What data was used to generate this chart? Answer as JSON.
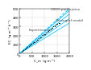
{
  "title": "",
  "xlabel": "C_in  (g m⁻³)",
  "ylabel": "EC  (g m⁻³ h⁻¹)",
  "xlim": [
    0,
    2000
  ],
  "ylim": [
    0,
    500
  ],
  "xticks": [
    0,
    500,
    1000,
    1500,
    2000
  ],
  "yticks": [
    0,
    100,
    200,
    300,
    400,
    500
  ],
  "background_color": "#ffffff",
  "grid_color": "#cccccc",
  "line_color": "#00bfff",
  "dot_color": "#222222",
  "purification_slope": 0.25,
  "model_slopes": [
    0.24,
    0.22,
    0.195,
    0.17
  ],
  "experimental_slope": 0.218,
  "label_fontsize": 3.0,
  "tick_fontsize": 2.8,
  "labels": {
    "purification": "100% purification",
    "experimental": "Experimental",
    "ottengraf": "Ottengraf model"
  }
}
